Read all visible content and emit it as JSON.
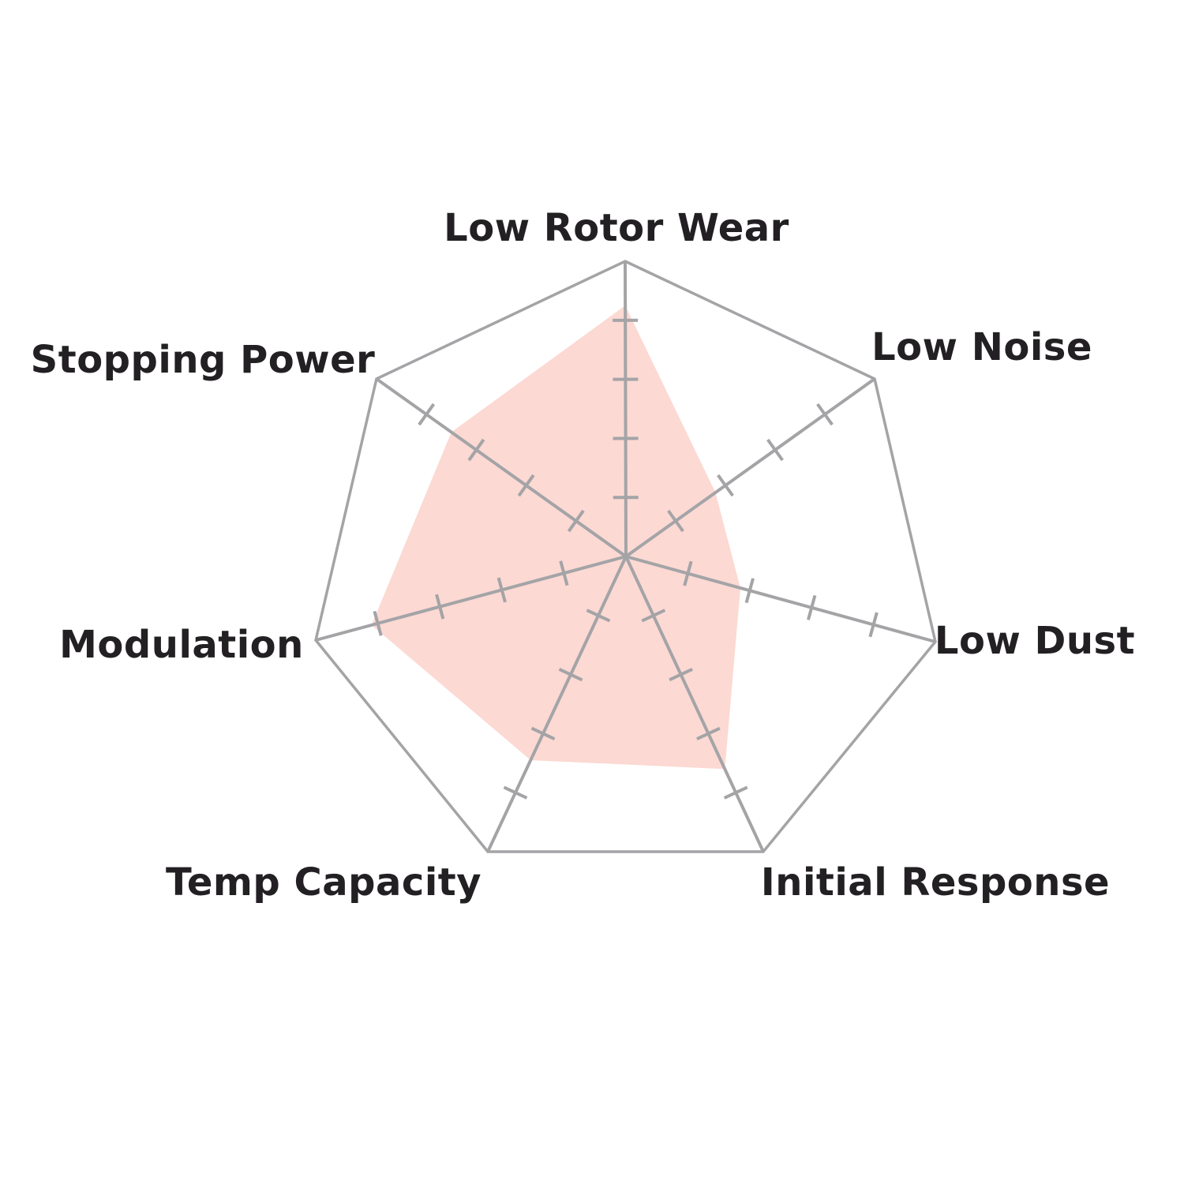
{
  "chart_data": {
    "type": "radar",
    "title": "",
    "categories": [
      "Low Rotor Wear",
      "Low Noise",
      "Low Dust",
      "Initial Response",
      "Temp Capacity",
      "Modulation",
      "Stopping Power"
    ],
    "values": [
      4.25,
      1.8,
      1.85,
      3.6,
      3.45,
      4.1,
      3.5
    ],
    "scale": {
      "min": 0,
      "max": 5,
      "tick_values": [
        1,
        2,
        3,
        4
      ]
    },
    "grid": "heptagon outline with radial spokes and perpendicular tick marks, no value labels",
    "legend": "none",
    "colors": {
      "series_fill": "#fcd9d3",
      "grid_line": "#a4a4a7",
      "label_text": "#232023",
      "background": "#ffffff"
    }
  }
}
